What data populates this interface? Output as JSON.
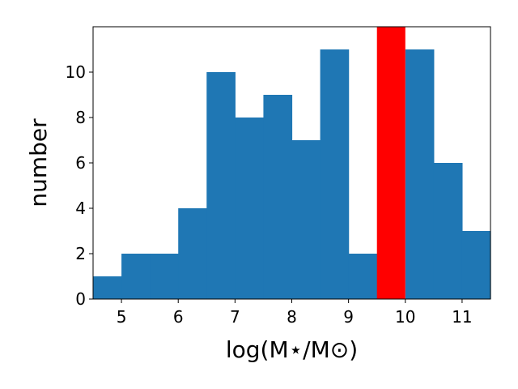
{
  "chart_data": {
    "type": "bar",
    "xlabel": "log(M⋆/M⊙)",
    "ylabel": "number",
    "xlim": [
      4.5,
      11.5
    ],
    "ylim": [
      0,
      12
    ],
    "x_ticks": [
      "5",
      "6",
      "7",
      "8",
      "9",
      "10",
      "11"
    ],
    "y_ticks": [
      "0",
      "2",
      "4",
      "6",
      "8",
      "10"
    ],
    "bin_width": 0.5,
    "bins": [
      {
        "x0": 4.5,
        "x1": 5.0,
        "value": 1
      },
      {
        "x0": 5.0,
        "x1": 5.5,
        "value": 2
      },
      {
        "x0": 5.5,
        "x1": 6.0,
        "value": 2
      },
      {
        "x0": 6.0,
        "x1": 6.5,
        "value": 4
      },
      {
        "x0": 6.5,
        "x1": 7.0,
        "value": 10
      },
      {
        "x0": 7.0,
        "x1": 7.5,
        "value": 8
      },
      {
        "x0": 7.5,
        "x1": 8.0,
        "value": 9
      },
      {
        "x0": 8.0,
        "x1": 8.5,
        "value": 7
      },
      {
        "x0": 8.5,
        "x1": 9.0,
        "value": 11
      },
      {
        "x0": 9.0,
        "x1": 9.5,
        "value": 2
      },
      {
        "x0": 10.0,
        "x1": 10.5,
        "value": 11
      },
      {
        "x0": 10.5,
        "x1": 11.0,
        "value": 6
      },
      {
        "x0": 11.0,
        "x1": 11.5,
        "value": 3
      }
    ],
    "highlight_band": {
      "x0": 9.5,
      "x1": 10.0
    },
    "grid": false,
    "colors": {
      "bars": "#1f77b4",
      "highlight": "#ff0000"
    }
  }
}
